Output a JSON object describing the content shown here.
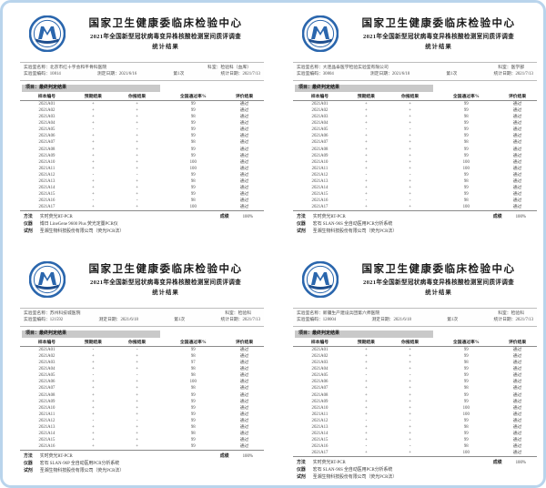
{
  "frame": {
    "border_color": "#b9d4ec"
  },
  "common": {
    "title": "国家卫生健康委临床检验中心",
    "subtitle": "2021年全国新型冠状病毒变异株核酸检测室间质评调查",
    "subtitle2": "统计结果",
    "section_label": "项目：最终判定结果",
    "table_headers": [
      "样本编号",
      "预期结果",
      "你报结果",
      "全国通过率%",
      "评价结果"
    ],
    "method_label": "方法",
    "score_label": "成绩",
    "instrument_label": "仪器",
    "reagent_label": "试剂",
    "logo_color": "#2a66ad"
  },
  "documents": [
    {
      "lab_name": "实验室名称：北京市红十字会和平骨科医院",
      "dept": "科室：检验科（血库）",
      "lab_code": "实验室编码：10814",
      "test_date": "测定日期：2021/6/16",
      "round": "第1次",
      "stat_date": "统计日期：2021/7/13",
      "method": "实时荧光RT-PCR",
      "score": "100%",
      "instrument": "博日 LineGene 9600 Plus 荧光定量PCR仪",
      "reagent": "圣湘生物科技股份有限公司（荧光PCR法）",
      "rows": [
        [
          "2021A01",
          "+",
          "+",
          "99",
          "通过"
        ],
        [
          "2021A02",
          "+",
          "+",
          "99",
          "通过"
        ],
        [
          "2021A03",
          "+",
          "+",
          "98",
          "通过"
        ],
        [
          "2021A04",
          "+",
          "+",
          "99",
          "通过"
        ],
        [
          "2021A05",
          "-",
          "-",
          "99",
          "通过"
        ],
        [
          "2021A06",
          "+",
          "+",
          "99",
          "通过"
        ],
        [
          "2021A07",
          "+",
          "+",
          "98",
          "通过"
        ],
        [
          "2021A08",
          "+",
          "+",
          "99",
          "通过"
        ],
        [
          "2021A09",
          "+",
          "+",
          "99",
          "通过"
        ],
        [
          "2021A10",
          "+",
          "+",
          "100",
          "通过"
        ],
        [
          "2021A11",
          "+",
          "+",
          "100",
          "通过"
        ],
        [
          "2021A12",
          "-",
          "-",
          "99",
          "通过"
        ],
        [
          "2021A13",
          "+",
          "+",
          "98",
          "通过"
        ],
        [
          "2021A14",
          "+",
          "+",
          "99",
          "通过"
        ],
        [
          "2021A15",
          "+",
          "+",
          "99",
          "通过"
        ],
        [
          "2021A16",
          "-",
          "-",
          "98",
          "通过"
        ],
        [
          "2021A17",
          "+",
          "+",
          "100",
          "通过"
        ]
      ]
    },
    {
      "lab_name": "实验室名称：大连晶泰医学检验实验室有限公司",
      "dept": "科室：医学部",
      "lab_code": "实验室编码：30804",
      "test_date": "测定日期：2021/6/18",
      "round": "第1次",
      "stat_date": "统计日期：2021/7/13",
      "method": "实时荧光RT-PCR",
      "score": "100%",
      "instrument": "宏石 SLAN-96S 全自动医用PCR分析系统",
      "reagent": "圣湘生物科技股份有限公司（荧光PCR法）",
      "rows": [
        [
          "2021A01",
          "+",
          "+",
          "99",
          "通过"
        ],
        [
          "2021A02",
          "+",
          "+",
          "99",
          "通过"
        ],
        [
          "2021A03",
          "+",
          "+",
          "98",
          "通过"
        ],
        [
          "2021A04",
          "+",
          "+",
          "99",
          "通过"
        ],
        [
          "2021A05",
          "-",
          "-",
          "99",
          "通过"
        ],
        [
          "2021A06",
          "+",
          "+",
          "99",
          "通过"
        ],
        [
          "2021A07",
          "+",
          "+",
          "98",
          "通过"
        ],
        [
          "2021A08",
          "+",
          "+",
          "99",
          "通过"
        ],
        [
          "2021A09",
          "+",
          "+",
          "99",
          "通过"
        ],
        [
          "2021A10",
          "+",
          "+",
          "100",
          "通过"
        ],
        [
          "2021A11",
          "+",
          "+",
          "100",
          "通过"
        ],
        [
          "2021A12",
          "-",
          "-",
          "99",
          "通过"
        ],
        [
          "2021A13",
          "+",
          "+",
          "98",
          "通过"
        ],
        [
          "2021A14",
          "+",
          "+",
          "99",
          "通过"
        ],
        [
          "2021A15",
          "+",
          "+",
          "99",
          "通过"
        ],
        [
          "2021A16",
          "-",
          "-",
          "98",
          "通过"
        ],
        [
          "2021A17",
          "+",
          "+",
          "100",
          "通过"
        ]
      ]
    },
    {
      "lab_name": "实验室名称：苏州科技城医院",
      "dept": "科室：检验科",
      "lab_code": "实验室编码：121592",
      "test_date": "测定日期：2021/6/18",
      "round": "第1次",
      "stat_date": "统计日期：2021/7/13",
      "method": "实时荧光RT-PCR",
      "score": "100%",
      "instrument": "宏石 SLAN-96P 全自动医用PCR分析系统",
      "reagent": "圣湘生物科技股份有限公司（荧光PCR法）",
      "rows": [
        [
          "2021A01",
          "-",
          "-",
          "99",
          "通过"
        ],
        [
          "2021A02",
          "+",
          "+",
          "98",
          "通过"
        ],
        [
          "2021A03",
          "+",
          "+",
          "97",
          "通过"
        ],
        [
          "2021A04",
          "+",
          "+",
          "98",
          "通过"
        ],
        [
          "2021A05",
          "-",
          "-",
          "98",
          "通过"
        ],
        [
          "2021A06",
          "+",
          "+",
          "100",
          "通过"
        ],
        [
          "2021A07",
          "+",
          "+",
          "98",
          "通过"
        ],
        [
          "2021A08",
          "+",
          "+",
          "99",
          "通过"
        ],
        [
          "2021A09",
          "+",
          "+",
          "99",
          "通过"
        ],
        [
          "2021A10",
          "+",
          "+",
          "99",
          "通过"
        ],
        [
          "2021A11",
          "+",
          "+",
          "99",
          "通过"
        ],
        [
          "2021A12",
          "-",
          "-",
          "99",
          "通过"
        ],
        [
          "2021A13",
          "+",
          "+",
          "98",
          "通过"
        ],
        [
          "2021A14",
          "+",
          "+",
          "98",
          "通过"
        ],
        [
          "2021A15",
          "+",
          "+",
          "99",
          "通过"
        ],
        [
          "2021A16",
          "+",
          "+",
          "99",
          "通过"
        ]
      ]
    },
    {
      "lab_name": "实验室名称：新疆生产建设兵团第六师医院",
      "dept": "科室：检验科",
      "lab_code": "实验室编码：128004",
      "test_date": "测定日期：2021/6/18",
      "round": "第1次",
      "stat_date": "统计日期：2021/7/13",
      "method": "实时荧光RT-PCR",
      "score": "100%",
      "instrument": "宏石 SLAN-96S 全自动医用PCR分析系统",
      "reagent": "圣湘生物科技股份有限公司（荧光PCR法）",
      "rows": [
        [
          "2021A01",
          "+",
          "+",
          "99",
          "通过"
        ],
        [
          "2021A02",
          "+",
          "+",
          "99",
          "通过"
        ],
        [
          "2021A03",
          "+",
          "+",
          "98",
          "通过"
        ],
        [
          "2021A04",
          "+",
          "+",
          "99",
          "通过"
        ],
        [
          "2021A05",
          "-",
          "-",
          "99",
          "通过"
        ],
        [
          "2021A06",
          "+",
          "+",
          "99",
          "通过"
        ],
        [
          "2021A07",
          "+",
          "+",
          "98",
          "通过"
        ],
        [
          "2021A08",
          "+",
          "+",
          "99",
          "通过"
        ],
        [
          "2021A09",
          "+",
          "+",
          "99",
          "通过"
        ],
        [
          "2021A10",
          "+",
          "+",
          "100",
          "通过"
        ],
        [
          "2021A11",
          "+",
          "+",
          "100",
          "通过"
        ],
        [
          "2021A12",
          "-",
          "-",
          "99",
          "通过"
        ],
        [
          "2021A13",
          "+",
          "+",
          "98",
          "通过"
        ],
        [
          "2021A14",
          "+",
          "+",
          "99",
          "通过"
        ],
        [
          "2021A15",
          "+",
          "+",
          "99",
          "通过"
        ],
        [
          "2021A16",
          "-",
          "-",
          "98",
          "通过"
        ],
        [
          "2021A17",
          "+",
          "+",
          "100",
          "通过"
        ]
      ]
    }
  ]
}
